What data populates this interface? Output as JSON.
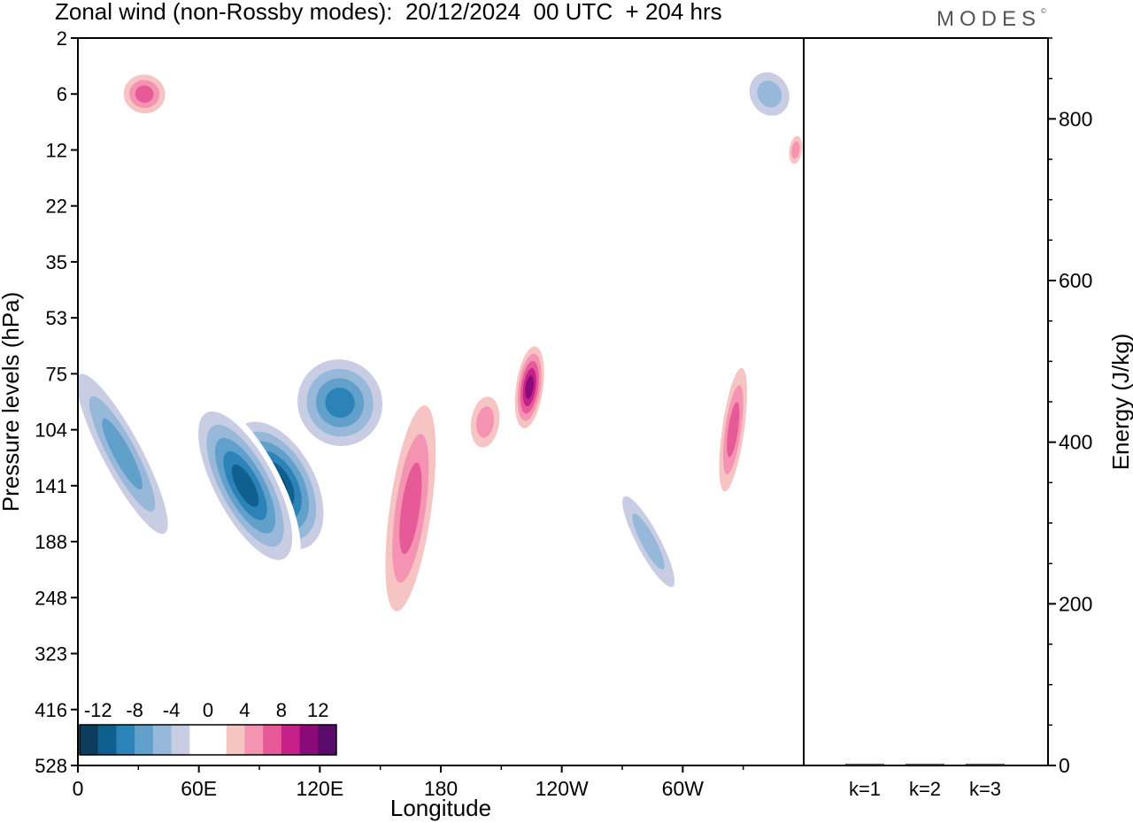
{
  "header": {
    "title": "Zonal wind (non-Rossby modes):  20/12/2024  00 UTC  + 204 hrs",
    "brand": "MODES",
    "brand_mark": "©"
  },
  "chart_data": [
    {
      "type": "heatmap",
      "title": "Zonal wind (non-Rossby modes):  20/12/2024  00 UTC  + 204 hrs",
      "xlabel": "Longitude",
      "ylabel": "Pressure levels (hPa)",
      "x_ticks": [
        "0",
        "60E",
        "120E",
        "180",
        "120W",
        "60W"
      ],
      "x_tick_degrees": [
        0,
        60,
        120,
        180,
        240,
        300
      ],
      "xlim": [
        0,
        360
      ],
      "y_ticks": [
        "2",
        "6",
        "12",
        "22",
        "35",
        "53",
        "75",
        "104",
        "141",
        "188",
        "248",
        "323",
        "416",
        "528"
      ],
      "colorbar": {
        "labels": [
          "-12",
          "-8",
          "-4",
          "0",
          "4",
          "8",
          "12"
        ],
        "levels": [
          -12,
          -8,
          -4,
          0,
          4,
          8,
          12
        ],
        "colors": [
          "#0d3d5c",
          "#0f5f8f",
          "#2c83b8",
          "#62a0cc",
          "#98b8da",
          "#c9cde3",
          "#ffffff",
          "#ffffff",
          "#f7c4c4",
          "#f593b2",
          "#e75a98",
          "#c6208a",
          "#8a0a7a",
          "#5a0a6a"
        ]
      },
      "features": [
        {
          "sign": "negative",
          "peak": -14,
          "lon": 98,
          "level": 141
        },
        {
          "sign": "negative",
          "peak": -12,
          "lon": 83,
          "level": 141
        },
        {
          "sign": "negative",
          "peak": -9,
          "lon": 130,
          "level": 90
        },
        {
          "sign": "negative",
          "peak": -7,
          "lon": 22,
          "level": 120
        },
        {
          "sign": "negative",
          "peak": -6,
          "lon": 283,
          "level": 188
        },
        {
          "sign": "negative",
          "peak": -6,
          "lon": 343,
          "level": 6
        },
        {
          "sign": "positive",
          "peak": 12,
          "lon": 224,
          "level": 82
        },
        {
          "sign": "positive",
          "peak": 8,
          "lon": 165,
          "level": 160
        },
        {
          "sign": "positive",
          "peak": 8,
          "lon": 325,
          "level": 104
        },
        {
          "sign": "positive",
          "peak": 8,
          "lon": 33,
          "level": 6
        },
        {
          "sign": "positive",
          "peak": 6,
          "lon": 356,
          "level": 12
        },
        {
          "sign": "positive",
          "peak": 6,
          "lon": 202,
          "level": 100
        }
      ]
    },
    {
      "type": "bar",
      "ylabel": "Energy (J/kg)",
      "categories": [
        "k=1",
        "k=2",
        "k=3"
      ],
      "values": [
        2,
        2,
        2
      ],
      "ylim": [
        0,
        900
      ],
      "y_ticks": [
        "0",
        "200",
        "400",
        "600",
        "800"
      ],
      "y_tick_values": [
        0,
        200,
        400,
        600,
        800
      ],
      "y_minor_step": 50
    }
  ]
}
